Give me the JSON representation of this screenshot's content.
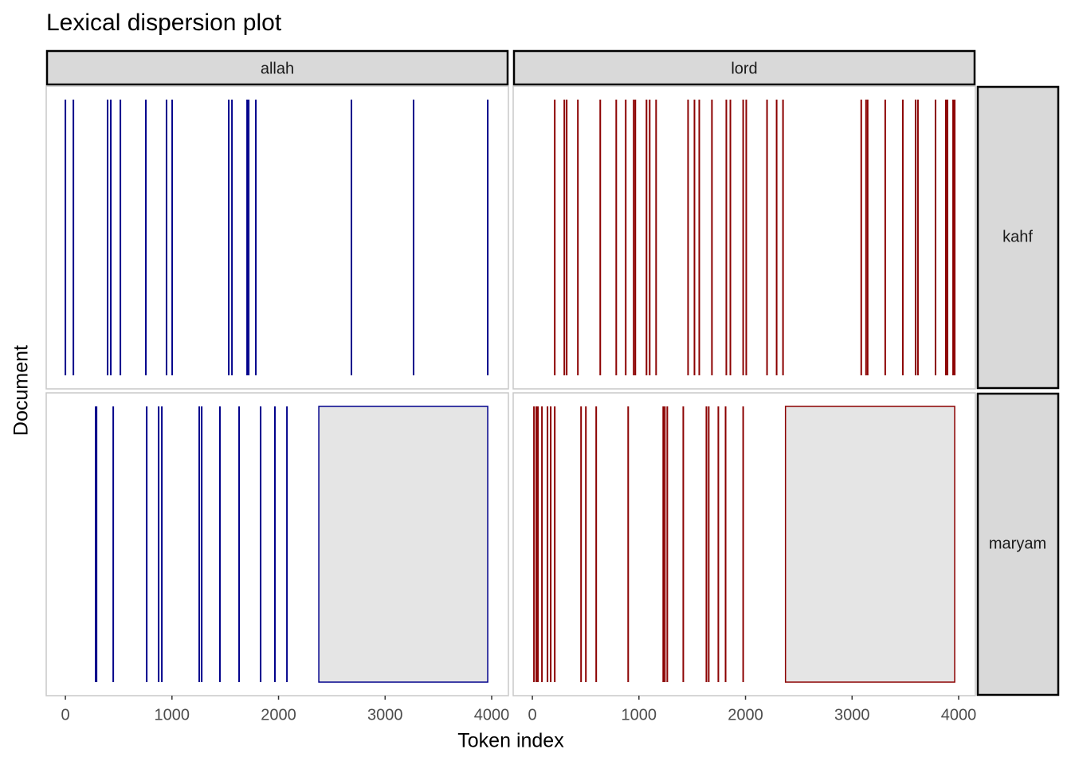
{
  "chart_data": {
    "type": "dispersion",
    "title": "Lexical dispersion plot",
    "xlabel": "Token index",
    "ylabel": "Document",
    "xlim": [
      -180,
      4157
    ],
    "xticks": [
      0,
      1000,
      2000,
      3000,
      4000
    ],
    "rows": [
      "kahf",
      "maryam"
    ],
    "columns": [
      {
        "term": "allah",
        "color": "#00008b",
        "rows": [
          {
            "positions": [
              0,
              75,
              396,
              426,
              516,
              755,
              949,
              1002,
              1533,
              1563,
              1705,
              1720,
              1787,
              2684,
              3267,
              3963
            ]
          },
          {
            "positions": [
              284,
              292,
              449,
              763,
              875,
              905,
              1256,
              1279,
              1450,
              1630,
              1832,
              1966,
              2079
            ],
            "empty_range": [
              2378,
              3963
            ]
          }
        ]
      },
      {
        "term": "lord",
        "color": "#8b0000",
        "rows": [
          {
            "positions": [
              210,
              300,
              322,
              427,
              637,
              787,
              876,
              951,
              966,
              1071,
              1101,
              1161,
              1461,
              1521,
              1566,
              1685,
              1820,
              1858,
              1978,
              2007,
              2202,
              2292,
              2352,
              3086,
              3131,
              3146,
              3311,
              3476,
              3596,
              3618,
              3783,
              3880,
              3895,
              3948,
              3963
            ]
          },
          {
            "positions": [
              15,
              37,
              52,
              90,
              142,
              172,
              210,
              457,
              502,
              599,
              899,
              1228,
              1243,
              1266,
              1416,
              1633,
              1655,
              1745,
              1813,
              1978
            ],
            "empty_range": [
              2375,
              3963
            ]
          }
        ]
      }
    ]
  }
}
